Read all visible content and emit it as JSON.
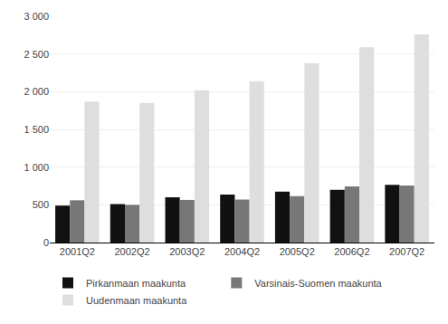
{
  "chart_data": {
    "type": "bar",
    "categories": [
      "2001Q2",
      "2002Q2",
      "2003Q2",
      "2004Q2",
      "2005Q2",
      "2006Q2",
      "2007Q2"
    ],
    "series": [
      {
        "name": "Pirkanmaan maakunta",
        "color": "#111111",
        "values": [
          490,
          510,
          600,
          635,
          675,
          700,
          765
        ]
      },
      {
        "name": "Varsinais-Suomen maakunta",
        "color": "#777777",
        "values": [
          560,
          500,
          565,
          570,
          615,
          745,
          755
        ]
      },
      {
        "name": "Uudenmaan maakunta",
        "color": "#dedede",
        "values": [
          1870,
          1850,
          2020,
          2140,
          2380,
          2590,
          2760
        ]
      }
    ],
    "ylim": [
      0,
      3000
    ],
    "yticks": [
      0,
      500,
      {
        "value": 1000,
        "label": "1 000"
      },
      {
        "value": 1500,
        "label": "1 500"
      },
      {
        "value": 2000,
        "label": "2 000"
      },
      {
        "value": 2500,
        "label": "2 500"
      },
      {
        "value": 3000,
        "label": "3 000"
      }
    ],
    "grid": true,
    "legend": "bottom"
  }
}
